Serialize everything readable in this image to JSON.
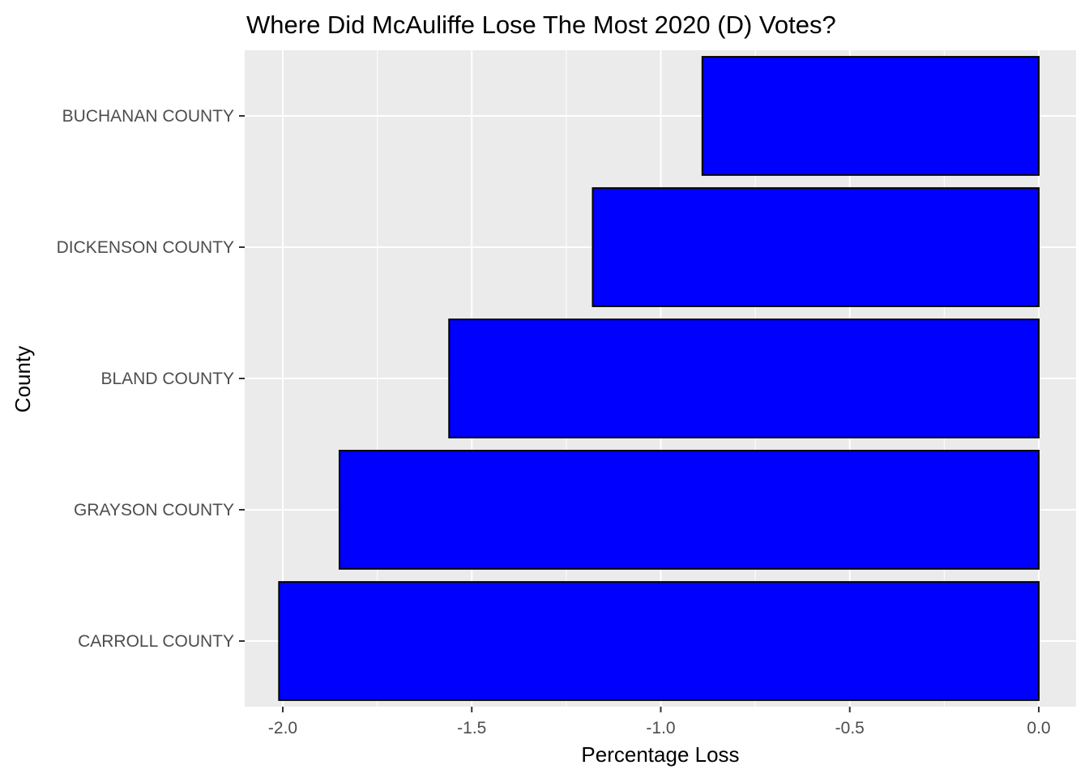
{
  "chart_data": {
    "type": "bar",
    "orientation": "horizontal",
    "title": "Where Did McAuliffe Lose The Most 2020 (D) Votes?",
    "xlabel": "Percentage Loss",
    "ylabel": "County",
    "categories": [
      "BUCHANAN COUNTY",
      "DICKENSON COUNTY",
      "BLAND COUNTY",
      "GRAYSON COUNTY",
      "CARROLL COUNTY"
    ],
    "values": [
      -0.89,
      -1.18,
      -1.56,
      -1.85,
      -2.01
    ],
    "xlim": [
      -2.1,
      0.0
    ],
    "xticks": [
      -2.0,
      -1.5,
      -1.0,
      -0.5,
      0.0
    ],
    "xtick_labels": [
      "-2.0",
      "-1.5",
      "-1.0",
      "-0.5",
      "0.0"
    ],
    "grid": true,
    "legend": "none",
    "colors": {
      "bar_fill": "#0000ff",
      "bar_stroke": "#000000",
      "panel": "#ebebeb",
      "grid": "#ffffff"
    }
  }
}
